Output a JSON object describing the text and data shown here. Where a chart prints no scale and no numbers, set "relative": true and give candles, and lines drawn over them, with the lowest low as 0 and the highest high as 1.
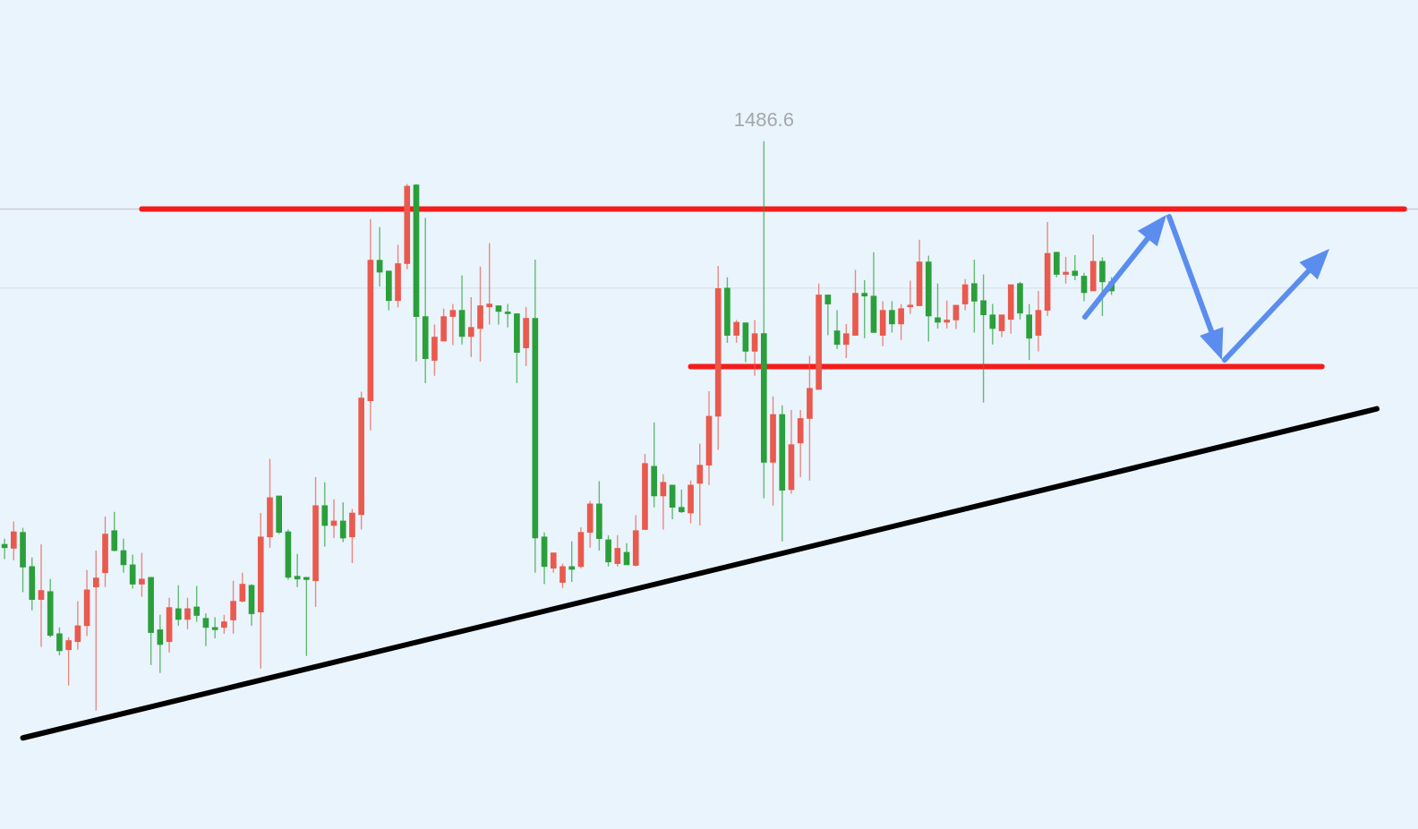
{
  "chart_data": {
    "type": "candlestick",
    "relative": true,
    "tick_labels": false,
    "legend": false,
    "categories": [
      null,
      null,
      null,
      null,
      null,
      null,
      null,
      null,
      null,
      null,
      null,
      null,
      null,
      null,
      null,
      null,
      null,
      null,
      null,
      null,
      null,
      null,
      null,
      null,
      null,
      null,
      null,
      null,
      null,
      null,
      null,
      null,
      null,
      null,
      null,
      null,
      null,
      null,
      null,
      null,
      null,
      null,
      null,
      null,
      null,
      null,
      null,
      null,
      null,
      null,
      null,
      null,
      null,
      null,
      null,
      null,
      null,
      null,
      null,
      null,
      null,
      null,
      null,
      null,
      null,
      null,
      null,
      null,
      null,
      null,
      null,
      null,
      null,
      null,
      null,
      null,
      null,
      null,
      null,
      null,
      null,
      null,
      null,
      null,
      null,
      null,
      null,
      null,
      null,
      null,
      null,
      null,
      null,
      null,
      null,
      null,
      null,
      null,
      null,
      null,
      null,
      null,
      null,
      null,
      null,
      null,
      null,
      null,
      null,
      null,
      null,
      null,
      null,
      null,
      null,
      null,
      null,
      null,
      null,
      null,
      null,
      null,
      null,
      null,
      null,
      null,
      null,
      null,
      null,
      null,
      null,
      null,
      null,
      null,
      null,
      null,
      null,
      null,
      null,
      null,
      null,
      null,
      null,
      null,
      null,
      null,
      null,
      null,
      null,
      null,
      null,
      null,
      null,
      null,
      null
    ],
    "ohlc": [
      [
        0.292,
        0.302,
        0.266,
        0.286
      ],
      [
        0.285,
        0.332,
        0.264,
        0.314
      ],
      [
        0.313,
        0.321,
        0.208,
        0.252
      ],
      [
        0.253,
        0.269,
        0.176,
        0.195
      ],
      [
        0.195,
        0.292,
        0.112,
        0.211
      ],
      [
        0.209,
        0.231,
        0.129,
        0.132
      ],
      [
        0.135,
        0.146,
        0.097,
        0.105
      ],
      [
        0.107,
        0.129,
        0.044,
        0.123
      ],
      [
        0.121,
        0.192,
        0.107,
        0.149
      ],
      [
        0.149,
        0.247,
        0.131,
        0.212
      ],
      [
        0.217,
        0.281,
        0,
        0.233
      ],
      [
        0.242,
        0.341,
        0.217,
        0.31
      ],
      [
        0.316,
        0.349,
        0.28,
        0.281
      ],
      [
        0.281,
        0.302,
        0.242,
        0.256
      ],
      [
        0.256,
        0.274,
        0.214,
        0.222
      ],
      [
        0.222,
        0.277,
        0.2,
        0.231
      ],
      [
        0.234,
        0.234,
        0.08,
        0.137
      ],
      [
        0.142,
        0.168,
        0.066,
        0.116
      ],
      [
        0.121,
        0.198,
        0.102,
        0.181
      ],
      [
        0.179,
        0.22,
        0.149,
        0.16
      ],
      [
        0.16,
        0.198,
        0.143,
        0.179
      ],
      [
        0.182,
        0.219,
        0.156,
        0.167
      ],
      [
        0.162,
        0.171,
        0.113,
        0.146
      ],
      [
        0.146,
        0.164,
        0.127,
        0.142
      ],
      [
        0.146,
        0.168,
        0.135,
        0.156
      ],
      [
        0.159,
        0.228,
        0.135,
        0.192
      ],
      [
        0.192,
        0.242,
        0.19,
        0.222
      ],
      [
        0.22,
        0.222,
        0.149,
        0.17
      ],
      [
        0.173,
        0.347,
        0.074,
        0.305
      ],
      [
        0.305,
        0.442,
        0.286,
        0.374
      ],
      [
        0.377,
        0.377,
        0.31,
        0.313
      ],
      [
        0.314,
        0.318,
        0.23,
        0.234
      ],
      [
        0.236,
        0.275,
        0.217,
        0.231
      ],
      [
        0.234,
        0.234,
        0.096,
        0.23
      ],
      [
        0.228,
        0.41,
        0.182,
        0.36
      ],
      [
        0.36,
        0.401,
        0.288,
        0.325
      ],
      [
        0.325,
        0.371,
        0.303,
        0.333
      ],
      [
        0.333,
        0.366,
        0.296,
        0.303
      ],
      [
        0.305,
        0.354,
        0.259,
        0.347
      ],
      [
        0.344,
        0.56,
        0.318,
        0.549
      ],
      [
        0.544,
        0.863,
        0.492,
        0.791
      ],
      [
        0.791,
        0.849,
        0.745,
        0.77
      ],
      [
        0.772,
        0.772,
        0.703,
        0.72
      ],
      [
        0.72,
        0.818,
        0.708,
        0.785
      ],
      [
        0.785,
        0.925,
        0.775,
        0.921
      ],
      [
        0.923,
        0.925,
        0.613,
        0.692
      ],
      [
        0.692,
        0.865,
        0.575,
        0.618
      ],
      [
        0.615,
        0.678,
        0.588,
        0.656
      ],
      [
        0.649,
        0.706,
        0.649,
        0.692
      ],
      [
        0.692,
        0.714,
        0.642,
        0.703
      ],
      [
        0.703,
        0.764,
        0.643,
        0.657
      ],
      [
        0.657,
        0.726,
        0.621,
        0.673
      ],
      [
        0.671,
        0.78,
        0.613,
        0.711
      ],
      [
        0.709,
        0.821,
        0.678,
        0.714
      ],
      [
        0.711,
        0.711,
        0.678,
        0.701
      ],
      [
        0.7,
        0.714,
        0.673,
        0.697
      ],
      [
        0.697,
        0.697,
        0.575,
        0.629
      ],
      [
        0.637,
        0.709,
        0.605,
        0.689
      ],
      [
        0.689,
        0.792,
        0.242,
        0.303
      ],
      [
        0.305,
        0.313,
        0.222,
        0.253
      ],
      [
        0.25,
        0.277,
        0.242,
        0.277
      ],
      [
        0.225,
        0.258,
        0.215,
        0.253
      ],
      [
        0.253,
        0.297,
        0.226,
        0.248
      ],
      [
        0.253,
        0.322,
        0.25,
        0.313
      ],
      [
        0.313,
        0.368,
        0.286,
        0.363
      ],
      [
        0.363,
        0.403,
        0.281,
        0.302
      ],
      [
        0.3,
        0.308,
        0.253,
        0.261
      ],
      [
        0.258,
        0.308,
        0.253,
        0.285
      ],
      [
        0.278,
        0.294,
        0.256,
        0.256
      ],
      [
        0.255,
        0.343,
        0.253,
        0.316
      ],
      [
        0.318,
        0.451,
        0.318,
        0.434
      ],
      [
        0.429,
        0.506,
        0.357,
        0.377
      ],
      [
        0.377,
        0.415,
        0.318,
        0.401
      ],
      [
        0.396,
        0.396,
        0.336,
        0.357
      ],
      [
        0.357,
        0.388,
        0.347,
        0.349
      ],
      [
        0.347,
        0.404,
        0.329,
        0.396
      ],
      [
        0.399,
        0.469,
        0.325,
        0.431
      ],
      [
        0.431,
        0.561,
        0.396,
        0.517
      ],
      [
        0.517,
        0.781,
        0.458,
        0.741
      ],
      [
        0.742,
        0.761,
        0.646,
        0.659
      ],
      [
        0.659,
        0.686,
        0.646,
        0.682
      ],
      [
        0.681,
        0.681,
        0.612,
        0.631
      ],
      [
        0.631,
        0.686,
        0.588,
        0.662
      ],
      [
        0.662,
        1,
        0.373,
        0.436
      ],
      [
        0.436,
        0.552,
        0.36,
        0.52
      ],
      [
        0.52,
        0.536,
        0.297,
        0.387
      ],
      [
        0.388,
        0.528,
        0.381,
        0.467
      ],
      [
        0.47,
        0.528,
        0.41,
        0.513
      ],
      [
        0.513,
        0.623,
        0.404,
        0.566
      ],
      [
        0.564,
        0.75,
        0.564,
        0.73
      ],
      [
        0.73,
        0.73,
        0.659,
        0.714
      ],
      [
        0.667,
        0.703,
        0.635,
        0.643
      ],
      [
        0.643,
        0.679,
        0.619,
        0.662
      ],
      [
        0.659,
        0.774,
        0.659,
        0.733
      ],
      [
        0.733,
        0.756,
        0.654,
        0.728
      ],
      [
        0.728,
        0.805,
        0.664,
        0.664
      ],
      [
        0.659,
        0.719,
        0.64,
        0.703
      ],
      [
        0.703,
        0.719,
        0.664,
        0.679
      ],
      [
        0.679,
        0.714,
        0.651,
        0.706
      ],
      [
        0.709,
        0.755,
        0.697,
        0.712
      ],
      [
        0.711,
        0.827,
        0.711,
        0.788
      ],
      [
        0.788,
        0.799,
        0.648,
        0.693
      ],
      [
        0.69,
        0.75,
        0.671,
        0.682
      ],
      [
        0.682,
        0.72,
        0.671,
        0.686
      ],
      [
        0.686,
        0.712,
        0.67,
        0.712
      ],
      [
        0.714,
        0.758,
        0.703,
        0.748
      ],
      [
        0.75,
        0.792,
        0.664,
        0.719
      ],
      [
        0.72,
        0.766,
        0.541,
        0.695
      ],
      [
        0.695,
        0.714,
        0.643,
        0.671
      ],
      [
        0.667,
        0.695,
        0.656,
        0.695
      ],
      [
        0.687,
        0.748,
        0.662,
        0.748
      ],
      [
        0.75,
        0.753,
        0.687,
        0.698
      ],
      [
        0.695,
        0.714,
        0.616,
        0.654
      ],
      [
        0.659,
        0.737,
        0.631,
        0.703
      ],
      [
        0.703,
        0.858,
        0.693,
        0.803
      ],
      [
        0.805,
        0.805,
        0.761,
        0.766
      ],
      [
        0.766,
        0.797,
        0.75,
        0.77
      ],
      [
        0.772,
        0.8,
        0.756,
        0.764
      ],
      [
        0.763,
        0.769,
        0.719,
        0.734
      ],
      [
        0.737,
        0.836,
        0.737,
        0.789
      ],
      [
        0.789,
        0.796,
        0.693,
        0.753
      ],
      [
        0.753,
        0.761,
        0.73,
        0.737
      ],
      null,
      null,
      null,
      null,
      null,
      null,
      null,
      null,
      null,
      null,
      null,
      null,
      null,
      null,
      null,
      null,
      null,
      null,
      null,
      null,
      null,
      null,
      null,
      null,
      null,
      null,
      null,
      null,
      null,
      null,
      null,
      null,
      null
    ],
    "colors": [
      "#2b9f3b",
      "#e95a4e",
      "#2b9f3b",
      "#2b9f3b",
      "#e95a4e",
      "#2b9f3b",
      "#2b9f3b",
      "#e95a4e",
      "#e95a4e",
      "#e95a4e",
      "#e95a4e",
      "#e95a4e",
      "#2b9f3b",
      "#2b9f3b",
      "#2b9f3b",
      "#e95a4e",
      "#2b9f3b",
      "#2b9f3b",
      "#e95a4e",
      "#2b9f3b",
      "#e95a4e",
      "#2b9f3b",
      "#2b9f3b",
      "#2b9f3b",
      "#e95a4e",
      "#e95a4e",
      "#e95a4e",
      "#2b9f3b",
      "#e95a4e",
      "#e95a4e",
      "#2b9f3b",
      "#2b9f3b",
      "#2b9f3b",
      "#2b9f3b",
      "#e95a4e",
      "#2b9f3b",
      "#e95a4e",
      "#2b9f3b",
      "#e95a4e",
      "#e95a4e",
      "#e95a4e",
      "#2b9f3b",
      "#2b9f3b",
      "#e95a4e",
      "#e95a4e",
      "#2b9f3b",
      "#2b9f3b",
      "#e95a4e",
      "#e95a4e",
      "#e95a4e",
      "#2b9f3b",
      "#e95a4e",
      "#e95a4e",
      "#e95a4e",
      "#2b9f3b",
      "#2b9f3b",
      "#2b9f3b",
      "#e95a4e",
      "#2b9f3b",
      "#2b9f3b",
      "#e95a4e",
      "#e95a4e",
      "#2b9f3b",
      "#e95a4e",
      "#e95a4e",
      "#2b9f3b",
      "#2b9f3b",
      "#e95a4e",
      "#2b9f3b",
      "#e95a4e",
      "#e95a4e",
      "#2b9f3b",
      "#e95a4e",
      "#2b9f3b",
      "#2b9f3b",
      "#e95a4e",
      "#e95a4e",
      "#e95a4e",
      "#e95a4e",
      "#2b9f3b",
      "#e95a4e",
      "#2b9f3b",
      "#e95a4e",
      "#2b9f3b",
      "#e95a4e",
      "#2b9f3b",
      "#e95a4e",
      "#e95a4e",
      "#e95a4e",
      "#e95a4e",
      "#2b9f3b",
      "#2b9f3b",
      "#e95a4e",
      "#e95a4e",
      "#2b9f3b",
      "#2b9f3b",
      "#e95a4e",
      "#2b9f3b",
      "#e95a4e",
      "#e95a4e",
      "#e95a4e",
      "#2b9f3b",
      "#2b9f3b",
      "#e95a4e",
      "#e95a4e",
      "#e95a4e",
      "#2b9f3b",
      "#2b9f3b",
      "#2b9f3b",
      "#e95a4e",
      "#e95a4e",
      "#2b9f3b",
      "#2b9f3b",
      "#e95a4e",
      "#e95a4e",
      "#2b9f3b",
      "#e95a4e",
      "#2b9f3b",
      "#2b9f3b",
      "#e95a4e",
      "#2b9f3b",
      "#2b9f3b",
      null,
      null,
      null,
      null,
      null,
      null,
      null,
      null,
      null,
      null,
      null,
      null,
      null,
      null,
      null,
      null,
      null,
      null,
      null,
      null,
      null,
      null,
      null,
      null,
      null,
      null,
      null,
      null,
      null,
      null,
      null,
      null,
      null
    ],
    "series": [
      {
        "type": "line",
        "color": "#000000",
        "values": [
          null,
          null,
          -0.048,
          null,
          null,
          null,
          null,
          null,
          null,
          null,
          null,
          null,
          null,
          null,
          null,
          null,
          null,
          null,
          null,
          null,
          null,
          null,
          null,
          null,
          null,
          null,
          null,
          null,
          null,
          null,
          null,
          null,
          null,
          null,
          null,
          null,
          null,
          null,
          null,
          null,
          null,
          null,
          null,
          null,
          null,
          null,
          null,
          null,
          null,
          null,
          null,
          null,
          null,
          null,
          null,
          null,
          null,
          null,
          null,
          null,
          null,
          null,
          null,
          null,
          null,
          null,
          null,
          null,
          null,
          null,
          null,
          null,
          null,
          null,
          null,
          null,
          null,
          null,
          null,
          null,
          null,
          null,
          null,
          null,
          null,
          null,
          null,
          null,
          null,
          null,
          null,
          null,
          null,
          null,
          null,
          null,
          null,
          null,
          null,
          null,
          null,
          null,
          null,
          null,
          null,
          null,
          null,
          null,
          null,
          null,
          null,
          null,
          null,
          null,
          null,
          null,
          null,
          null,
          null,
          null,
          null,
          null,
          null,
          null,
          null,
          null,
          null,
          null,
          null,
          null,
          null,
          null,
          null,
          null,
          null,
          null,
          null,
          null,
          null,
          null,
          null,
          null,
          null,
          null,
          null,
          null,
          null,
          null,
          null,
          null,
          0.53,
          null,
          null,
          null,
          null
        ]
      },
      {
        "type": "line",
        "color": "#f51c1c",
        "values": [
          null,
          null,
          null,
          null,
          null,
          null,
          null,
          null,
          null,
          null,
          null,
          null,
          null,
          null,
          null,
          0.881,
          null,
          null,
          null,
          null,
          null,
          null,
          null,
          null,
          null,
          null,
          null,
          null,
          null,
          null,
          null,
          null,
          null,
          null,
          null,
          null,
          null,
          null,
          null,
          null,
          null,
          null,
          null,
          null,
          null,
          null,
          null,
          null,
          null,
          null,
          null,
          null,
          null,
          null,
          null,
          null,
          null,
          null,
          null,
          null,
          null,
          null,
          null,
          null,
          null,
          null,
          null,
          null,
          null,
          null,
          null,
          null,
          null,
          null,
          null,
          null,
          null,
          null,
          null,
          null,
          null,
          null,
          null,
          null,
          null,
          null,
          null,
          null,
          null,
          null,
          null,
          null,
          null,
          null,
          null,
          null,
          null,
          null,
          null,
          null,
          null,
          null,
          null,
          null,
          null,
          null,
          null,
          null,
          null,
          null,
          null,
          null,
          null,
          null,
          null,
          null,
          null,
          null,
          null,
          null,
          null,
          null,
          null,
          null,
          null,
          null,
          null,
          null,
          null,
          null,
          null,
          null,
          null,
          null,
          null,
          null,
          null,
          null,
          null,
          null,
          null,
          null,
          null,
          null,
          null,
          null,
          null,
          null,
          null,
          null,
          null,
          null,
          null,
          0.881,
          null
        ]
      },
      {
        "type": "line",
        "color": "#f51c1c",
        "values": [
          null,
          null,
          null,
          null,
          null,
          null,
          null,
          null,
          null,
          null,
          null,
          null,
          null,
          null,
          null,
          null,
          null,
          null,
          null,
          null,
          null,
          null,
          null,
          null,
          null,
          null,
          null,
          null,
          null,
          null,
          null,
          null,
          null,
          null,
          null,
          null,
          null,
          null,
          null,
          null,
          null,
          null,
          null,
          null,
          null,
          null,
          null,
          null,
          null,
          null,
          null,
          null,
          null,
          null,
          null,
          null,
          null,
          null,
          null,
          null,
          null,
          null,
          null,
          null,
          null,
          null,
          null,
          null,
          null,
          null,
          null,
          null,
          null,
          null,
          null,
          0.604,
          null,
          null,
          null,
          null,
          null,
          null,
          null,
          null,
          null,
          null,
          null,
          null,
          null,
          null,
          null,
          null,
          null,
          null,
          null,
          null,
          null,
          null,
          null,
          null,
          null,
          null,
          null,
          null,
          null,
          null,
          null,
          null,
          null,
          null,
          null,
          null,
          null,
          null,
          null,
          null,
          null,
          null,
          null,
          null,
          null,
          null,
          null,
          null,
          null,
          null,
          null,
          null,
          null,
          null,
          null,
          null,
          null,
          null,
          null,
          null,
          null,
          null,
          null,
          null,
          null,
          null,
          null,
          null,
          0.604,
          null,
          null,
          null,
          null,
          null,
          null,
          null,
          null,
          null,
          null
        ]
      }
    ],
    "ref_lines": [
      {
        "axis": "y",
        "value": 0.881,
        "color": "#c9ced4"
      },
      {
        "axis": "y",
        "value": 0.742,
        "color": "#dde4ec"
      }
    ],
    "annotations": [
      {
        "text": "1486.6",
        "y": 1
      }
    ]
  }
}
